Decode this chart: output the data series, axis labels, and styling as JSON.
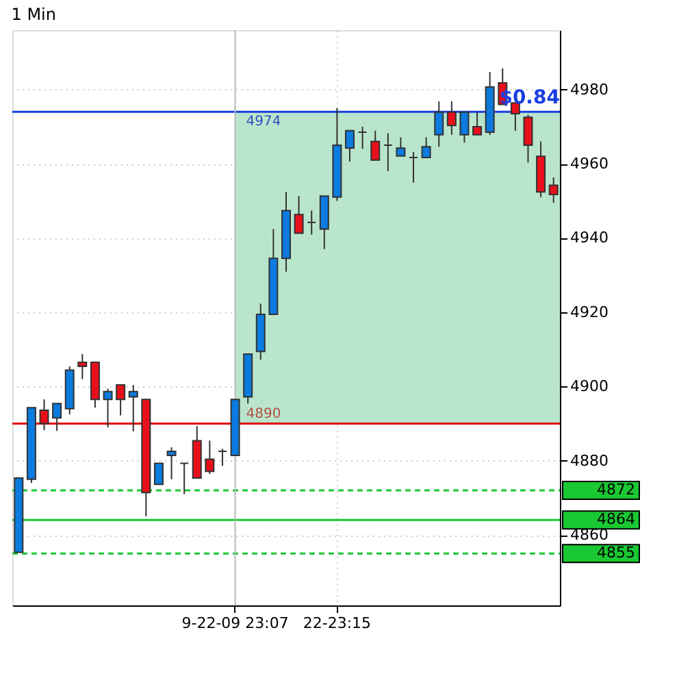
{
  "chart_data": {
    "type": "candlestick",
    "title": "1 Min",
    "categories": [
      null,
      null,
      null,
      null,
      null,
      null,
      null,
      null,
      null,
      null,
      null,
      null,
      null,
      null,
      null,
      null,
      null,
      "9-22-09 23:07",
      null,
      null,
      null,
      null,
      null,
      null,
      null,
      "22-23:15",
      null,
      null,
      null,
      null,
      null,
      null,
      null,
      null,
      null,
      null,
      null,
      null,
      null,
      null,
      null,
      null,
      null
    ],
    "ohlc": [
      [
        4855.3,
        4875.3,
        4855.3,
        4875.3
      ],
      [
        4875,
        4894.3,
        4874,
        4894.3
      ],
      [
        4893.6,
        4896.5,
        4888.2,
        4890
      ],
      [
        4891.5,
        4895.4,
        4888,
        4895.4
      ],
      [
        4894,
        4905.4,
        4892.5,
        4904.4
      ],
      [
        4906.5,
        4908.7,
        4902,
        4905.4
      ],
      [
        4906.5,
        4906.5,
        4894.3,
        4896.5
      ],
      [
        4896.5,
        4899.4,
        4889,
        4898.6
      ],
      [
        4900.4,
        4900.4,
        4892.2,
        4896.5
      ],
      [
        4897.2,
        4900.4,
        4887.9,
        4898.6
      ],
      [
        4896.5,
        4896.5,
        4865,
        4871.4
      ],
      [
        4873.6,
        4879.3,
        4873.6,
        4879.3
      ],
      [
        4881.4,
        4883.6,
        4875,
        4882.5
      ],
      [
        4879.3,
        4879.3,
        4871,
        4879.3
      ],
      [
        4885.4,
        4889.3,
        4875.3,
        4875.3
      ],
      [
        4880.4,
        4885.4,
        4876.4,
        4877.1
      ],
      [
        4882.5,
        4883.2,
        4878.6,
        4882.5
      ],
      [
        4881.4,
        4896.5,
        4881.4,
        4896.5
      ],
      [
        4897.2,
        4908.7,
        4895.4,
        4908.7
      ],
      [
        4909.4,
        4922.3,
        4907.2,
        4919.4
      ],
      [
        4919.4,
        4942.4,
        4919.4,
        4934.5
      ],
      [
        4934.5,
        4952.4,
        4930.9,
        4947.4
      ],
      [
        4946.3,
        4951.3,
        4941.3,
        4941.3
      ],
      [
        4944.2,
        4947.4,
        4940.9,
        4944.2
      ],
      [
        4942.4,
        4951.3,
        4937,
        4951.3
      ],
      [
        4951,
        4975,
        4950,
        4965
      ],
      [
        4964.2,
        4968.9,
        4960.6,
        4968.9
      ],
      [
        4968.5,
        4970,
        4964,
        4968.5
      ],
      [
        4966,
        4968.9,
        4961,
        4961
      ],
      [
        4965,
        4968.2,
        4958,
        4965
      ],
      [
        4962.1,
        4967.1,
        4962.1,
        4964.2
      ],
      [
        4961.7,
        4963.2,
        4954.9,
        4961.7
      ],
      [
        4961.7,
        4967.1,
        4961.7,
        4964.6
      ],
      [
        4967.8,
        4976.8,
        4964.6,
        4973.9
      ],
      [
        4973.9,
        4976.8,
        4967.8,
        4970.3
      ],
      [
        4967.8,
        4973.9,
        4965.7,
        4973.9
      ],
      [
        4970,
        4973.9,
        4967.8,
        4967.8
      ],
      [
        4968.5,
        4984.7,
        4967.8,
        4980.7
      ],
      [
        4981.8,
        4985.7,
        4976,
        4976
      ],
      [
        4976.4,
        4976.4,
        4968.9,
        4973.5
      ],
      [
        4972.5,
        4973.2,
        4960.3,
        4965
      ],
      [
        4962,
        4966,
        4951,
        4952.4
      ],
      [
        4954.2,
        4956.3,
        4949.5,
        4951.7
      ]
    ],
    "colors": [
      "#0b7be0",
      "#0b7be0",
      "#e8101a",
      "#0b7be0",
      "#0b7be0",
      "#e8101a",
      "#e8101a",
      "#0b7be0",
      "#e8101a",
      "#0b7be0",
      "#e8101a",
      "#0b7be0",
      "#0b7be0",
      "#333333",
      "#e8101a",
      "#e8101a",
      "#333333",
      "#0b7be0",
      "#0b7be0",
      "#0b7be0",
      "#0b7be0",
      "#0b7be0",
      "#e8101a",
      "#333333",
      "#0b7be0",
      "#0b7be0",
      "#0b7be0",
      "#333333",
      "#e8101a",
      "#333333",
      "#0b7be0",
      "#333333",
      "#0b7be0",
      "#0b7be0",
      "#e8101a",
      "#0b7be0",
      "#e8101a",
      "#0b7be0",
      "#e8101a",
      "#e8101a",
      "#e8101a",
      "#e8101a",
      "#e8101a"
    ],
    "ylim": [
      4841,
      4996
    ],
    "yticks": [
      4860,
      4880,
      4900,
      4920,
      4940,
      4960,
      4980
    ],
    "grid": true,
    "bands": [
      {
        "axis": "y",
        "from": 4890,
        "to": 4974,
        "color": "#b3e2c8"
      }
    ],
    "ref_lines": [
      {
        "axis": "y",
        "value": 4974,
        "color": "#1a3fe0",
        "line_style": "solid"
      },
      {
        "axis": "y",
        "value": 4890,
        "color": "#e00000",
        "line_style": "solid"
      },
      {
        "axis": "y",
        "value": 4872,
        "label": "4872",
        "color": "#19c832",
        "line_style": "dashed"
      },
      {
        "axis": "y",
        "value": 4864,
        "label": "4864",
        "color": "#19c832",
        "line_style": "solid"
      },
      {
        "axis": "y",
        "value": 4855,
        "label": "4855",
        "color": "#19c832",
        "line_style": "dashed"
      },
      {
        "axis": "x",
        "value": "9-22-09 23:07",
        "color": "#bbbbbb",
        "line_style": "solid"
      }
    ],
    "annotations": [
      {
        "text": "4974",
        "x": "9-22-09 23:07",
        "y": 4974
      },
      {
        "text": "4890",
        "x": "9-22-09 23:07",
        "y": 4890
      },
      {
        "text": "$0.84",
        "y": 4974
      }
    ]
  }
}
